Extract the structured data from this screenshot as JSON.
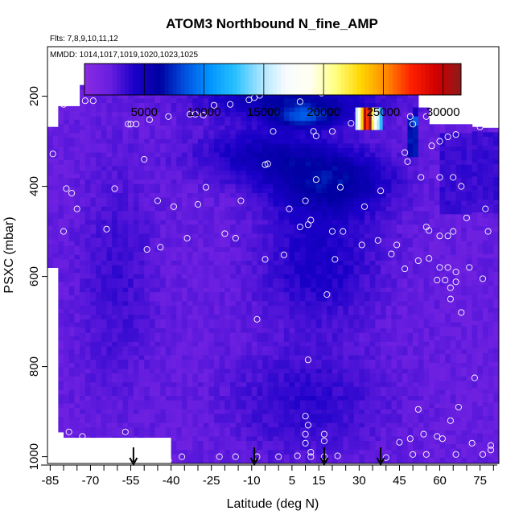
{
  "chart_data": {
    "type": "heatmap",
    "title": "ATOM3 Northbound N_fine_AMP",
    "flights_label": "Flts: 7,8,9,10,11,12",
    "dates_label": "MMDD: 1014,1017,1019,1020,1023,1025",
    "xlabel": "Latitude (deg N)",
    "ylabel": "PSXC (mbar)",
    "xlim": [
      -86,
      82
    ],
    "ylim": [
      1015,
      90
    ],
    "x_ticks": [
      -85,
      -70,
      -55,
      -40,
      -25,
      -10,
      5,
      15,
      30,
      45,
      60,
      75
    ],
    "y_ticks": [
      200,
      400,
      600,
      800,
      1000
    ],
    "colorbar": {
      "range": [
        0,
        31500
      ],
      "ticks": [
        5000,
        10000,
        15000,
        20000,
        25000,
        30000
      ],
      "colors": [
        "#8a2be2",
        "#6a1fe0",
        "#1a00c8",
        "#0000a0",
        "#0050e0",
        "#0095ff",
        "#29c0ff",
        "#a6e4ff",
        "#f8fbff",
        "#fffff0",
        "#ffff80",
        "#ffd700",
        "#ff8c00",
        "#ff2000",
        "#d00000",
        "#8b1a1a"
      ]
    },
    "arrows_latitude": [
      -54,
      -9,
      17,
      38
    ],
    "observations": [
      {
        "lat": -55,
        "p": 185
      },
      {
        "lat": -80,
        "p": 218
      },
      {
        "lat": -72,
        "p": 210
      },
      {
        "lat": -69,
        "p": 210
      },
      {
        "lat": -56,
        "p": 262
      },
      {
        "lat": -55,
        "p": 262
      },
      {
        "lat": -53,
        "p": 262
      },
      {
        "lat": -48,
        "p": 252
      },
      {
        "lat": -41,
        "p": 245
      },
      {
        "lat": -33,
        "p": 240
      },
      {
        "lat": -31,
        "p": 240
      },
      {
        "lat": -28,
        "p": 242
      },
      {
        "lat": -24,
        "p": 220
      },
      {
        "lat": -18,
        "p": 218
      },
      {
        "lat": -11,
        "p": 208
      },
      {
        "lat": -9,
        "p": 203
      },
      {
        "lat": -7,
        "p": 198
      },
      {
        "lat": 8,
        "p": 212
      },
      {
        "lat": 16,
        "p": 193
      },
      {
        "lat": -2,
        "p": 278
      },
      {
        "lat": 13,
        "p": 278
      },
      {
        "lat": 14,
        "p": 288
      },
      {
        "lat": 20,
        "p": 278
      },
      {
        "lat": 27,
        "p": 260
      },
      {
        "lat": 36,
        "p": 248
      },
      {
        "lat": 49,
        "p": 245
      },
      {
        "lat": 50,
        "p": 262
      },
      {
        "lat": 55,
        "p": 245
      },
      {
        "lat": 47,
        "p": 325
      },
      {
        "lat": 48,
        "p": 345
      },
      {
        "lat": 57,
        "p": 310
      },
      {
        "lat": 60,
        "p": 300
      },
      {
        "lat": 63,
        "p": 290
      },
      {
        "lat": 66,
        "p": 285
      },
      {
        "lat": 75,
        "p": 268
      },
      {
        "lat": -84,
        "p": 328
      },
      {
        "lat": -50,
        "p": 340
      },
      {
        "lat": -5,
        "p": 352
      },
      {
        "lat": -4,
        "p": 350
      },
      {
        "lat": -79,
        "p": 405
      },
      {
        "lat": -77,
        "p": 415
      },
      {
        "lat": -61,
        "p": 405
      },
      {
        "lat": -27,
        "p": 402
      },
      {
        "lat": -45,
        "p": 432
      },
      {
        "lat": -39,
        "p": 445
      },
      {
        "lat": -30,
        "p": 440
      },
      {
        "lat": -14,
        "p": 432
      },
      {
        "lat": 4,
        "p": 450
      },
      {
        "lat": 10,
        "p": 432
      },
      {
        "lat": 14,
        "p": 385
      },
      {
        "lat": 23,
        "p": 402
      },
      {
        "lat": 32,
        "p": 445
      },
      {
        "lat": 38,
        "p": 410
      },
      {
        "lat": 53,
        "p": 380
      },
      {
        "lat": 60,
        "p": 380
      },
      {
        "lat": 65,
        "p": 380
      },
      {
        "lat": 68,
        "p": 400
      },
      {
        "lat": -75,
        "p": 450
      },
      {
        "lat": -80,
        "p": 500
      },
      {
        "lat": -64,
        "p": 495
      },
      {
        "lat": -49,
        "p": 540
      },
      {
        "lat": -44,
        "p": 535
      },
      {
        "lat": -34,
        "p": 515
      },
      {
        "lat": -20,
        "p": 505
      },
      {
        "lat": -16,
        "p": 515
      },
      {
        "lat": 8,
        "p": 490
      },
      {
        "lat": 11,
        "p": 485
      },
      {
        "lat": 12,
        "p": 475
      },
      {
        "lat": 20,
        "p": 500
      },
      {
        "lat": 24,
        "p": 500
      },
      {
        "lat": 31,
        "p": 530
      },
      {
        "lat": 37,
        "p": 520
      },
      {
        "lat": 44,
        "p": 530
      },
      {
        "lat": 55,
        "p": 490
      },
      {
        "lat": 56,
        "p": 498
      },
      {
        "lat": 60,
        "p": 510
      },
      {
        "lat": 63,
        "p": 510
      },
      {
        "lat": 65,
        "p": 500
      },
      {
        "lat": 70,
        "p": 470
      },
      {
        "lat": 77,
        "p": 450
      },
      {
        "lat": 78,
        "p": 500
      },
      {
        "lat": -5,
        "p": 562
      },
      {
        "lat": 2,
        "p": 552
      },
      {
        "lat": 21,
        "p": 562
      },
      {
        "lat": 42,
        "p": 550
      },
      {
        "lat": 47,
        "p": 583
      },
      {
        "lat": 52,
        "p": 565
      },
      {
        "lat": 56,
        "p": 560
      },
      {
        "lat": 60,
        "p": 580
      },
      {
        "lat": 63,
        "p": 580
      },
      {
        "lat": 66,
        "p": 590
      },
      {
        "lat": 71,
        "p": 580
      },
      {
        "lat": 59,
        "p": 608
      },
      {
        "lat": 62,
        "p": 608
      },
      {
        "lat": 64,
        "p": 625
      },
      {
        "lat": 66,
        "p": 612
      },
      {
        "lat": 76,
        "p": 605
      },
      {
        "lat": 64,
        "p": 650
      },
      {
        "lat": 18,
        "p": 640
      },
      {
        "lat": -8,
        "p": 695
      },
      {
        "lat": 68,
        "p": 680
      },
      {
        "lat": 11,
        "p": 785
      },
      {
        "lat": 73,
        "p": 825
      },
      {
        "lat": 52,
        "p": 895
      },
      {
        "lat": 67,
        "p": 890
      },
      {
        "lat": 64,
        "p": 920
      },
      {
        "lat": 10,
        "p": 910
      },
      {
        "lat": 11,
        "p": 930
      },
      {
        "lat": 10,
        "p": 950
      },
      {
        "lat": -78,
        "p": 945
      },
      {
        "lat": -73,
        "p": 955
      },
      {
        "lat": -57,
        "p": 945
      },
      {
        "lat": 17,
        "p": 950
      },
      {
        "lat": 17,
        "p": 965
      },
      {
        "lat": 10,
        "p": 970
      },
      {
        "lat": 12,
        "p": 990
      },
      {
        "lat": 45,
        "p": 968
      },
      {
        "lat": 49,
        "p": 960
      },
      {
        "lat": 54,
        "p": 950
      },
      {
        "lat": 59,
        "p": 955
      },
      {
        "lat": 61,
        "p": 960
      },
      {
        "lat": 72,
        "p": 970
      },
      {
        "lat": 79,
        "p": 975
      },
      {
        "lat": 79,
        "p": 985
      },
      {
        "lat": -41,
        "p": 1008
      },
      {
        "lat": -36,
        "p": 1000
      },
      {
        "lat": -22,
        "p": 1000
      },
      {
        "lat": -16,
        "p": 1000
      },
      {
        "lat": -8,
        "p": 1000
      },
      {
        "lat": 0,
        "p": 1000
      },
      {
        "lat": 7,
        "p": 998
      },
      {
        "lat": 12,
        "p": 1000
      },
      {
        "lat": 17,
        "p": 1000
      },
      {
        "lat": 22,
        "p": 998
      },
      {
        "lat": 40,
        "p": 1002
      },
      {
        "lat": 50,
        "p": 995
      },
      {
        "lat": 55,
        "p": 995
      },
      {
        "lat": 66,
        "p": 995
      },
      {
        "lat": 76,
        "p": 995
      }
    ]
  }
}
